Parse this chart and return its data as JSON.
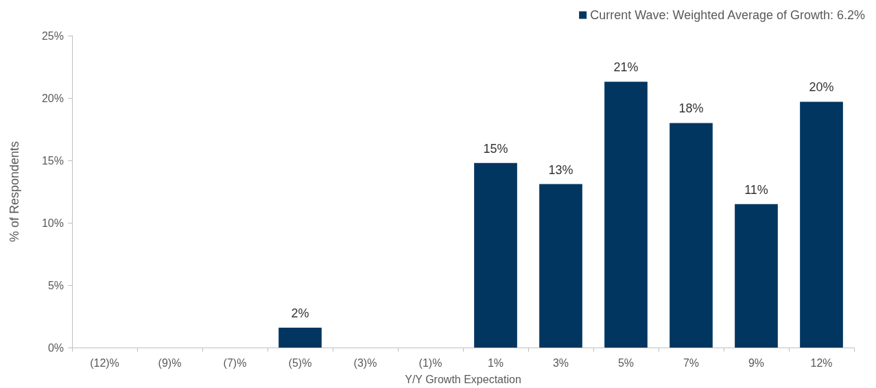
{
  "chart_data": {
    "type": "bar",
    "xlabel": "Y/Y Growth Expectation",
    "ylabel": "% of Respondents",
    "categories": [
      "(12)%",
      "(9)%",
      "(7)%",
      "(5)%",
      "(3)%",
      "(1)%",
      "1%",
      "3%",
      "5%",
      "7%",
      "9%",
      "12%"
    ],
    "series": [
      {
        "name": "Current Wave: Weighted Average of Growth: 6.2%",
        "color": "#003660",
        "values": [
          0,
          0,
          0,
          1.6,
          0,
          0,
          14.8,
          13.1,
          21.3,
          18.0,
          11.5,
          19.7
        ],
        "value_labels": [
          null,
          null,
          null,
          "2%",
          null,
          null,
          "15%",
          "13%",
          "21%",
          "18%",
          "11%",
          "20%"
        ]
      }
    ],
    "ylim": [
      0,
      25
    ],
    "yticks": [
      {
        "value": 0,
        "label": "0%"
      },
      {
        "value": 5,
        "label": "5%"
      },
      {
        "value": 10,
        "label": "10%"
      },
      {
        "value": 15,
        "label": "15%"
      },
      {
        "value": 20,
        "label": "20%"
      },
      {
        "value": 25,
        "label": "25%"
      }
    ],
    "grid": false,
    "legend": "top right"
  }
}
